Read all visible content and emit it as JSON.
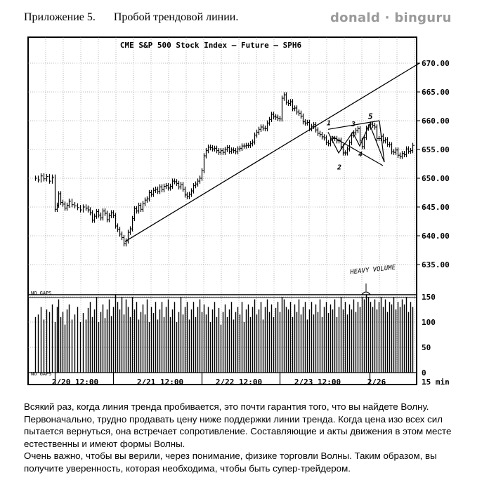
{
  "header": {
    "appendix": "Приложение 5.",
    "title": "Пробой трендовой линии.",
    "brand": "donald · binguru"
  },
  "chart_data": {
    "type": "bar",
    "title": "CME S&P 500 Stock Index – Future — SPH6",
    "price_axis": {
      "ticks": [
        "670.00",
        "665.00",
        "660.00",
        "655.00",
        "650.00",
        "645.00",
        "640.00",
        "635.00"
      ],
      "ylim": [
        632,
        672
      ]
    },
    "volume_axis": {
      "ticks": [
        "150",
        "100",
        "50",
        "0"
      ],
      "ylim": [
        0,
        160
      ]
    },
    "x_labels": [
      "2/20 12:00",
      "2/21 12:00",
      "2/22 12:00",
      "2/23 12:00",
      "2/26"
    ],
    "interval_label": "15 min",
    "no_gaps_label": "NO GAPS",
    "annotation": "HEAVY VOLUME",
    "wave_labels": [
      "1",
      "2",
      "3",
      "4",
      "5"
    ],
    "price_series": [
      [
        0,
        650.0
      ],
      [
        4,
        649.7
      ],
      [
        8,
        650.4
      ],
      [
        12,
        649.9
      ],
      [
        16,
        650.3
      ],
      [
        20,
        649.5
      ],
      [
        24,
        650.2
      ],
      [
        28,
        644.6
      ],
      [
        31,
        645.3
      ],
      [
        33,
        647.3
      ],
      [
        36,
        645.8
      ],
      [
        39,
        645.5
      ],
      [
        42,
        644.8
      ],
      [
        45,
        645.3
      ],
      [
        48,
        646.0
      ],
      [
        52,
        645.4
      ],
      [
        56,
        645.2
      ],
      [
        60,
        644.9
      ],
      [
        64,
        644.5
      ],
      [
        68,
        645.0
      ],
      [
        72,
        644.8
      ],
      [
        75,
        644.5
      ],
      [
        78,
        644.0
      ],
      [
        81,
        642.7
      ],
      [
        84,
        643.4
      ],
      [
        87,
        644.2
      ],
      [
        90,
        643.6
      ],
      [
        93,
        643.1
      ],
      [
        96,
        644.3
      ],
      [
        99,
        643.9
      ],
      [
        102,
        642.8
      ],
      [
        105,
        643.5
      ],
      [
        108,
        644.0
      ],
      [
        111,
        643.5
      ],
      [
        114,
        641.7
      ],
      [
        117,
        641.1
      ],
      [
        120,
        640.3
      ],
      [
        123,
        639.7
      ],
      [
        126,
        638.6
      ],
      [
        129,
        639.1
      ],
      [
        132,
        640.6
      ],
      [
        135,
        641.2
      ],
      [
        138,
        643.0
      ],
      [
        141,
        644.7
      ],
      [
        144,
        644.3
      ],
      [
        147,
        645.3
      ],
      [
        150,
        644.6
      ],
      [
        153,
        645.6
      ],
      [
        156,
        646.2
      ],
      [
        159,
        646.4
      ],
      [
        162,
        647.5
      ],
      [
        165,
        647.2
      ],
      [
        168,
        647.9
      ],
      [
        171,
        648.1
      ],
      [
        174,
        647.7
      ],
      [
        177,
        648.5
      ],
      [
        180,
        648.0
      ],
      [
        183,
        648.6
      ],
      [
        186,
        648.7
      ],
      [
        189,
        648.3
      ],
      [
        192,
        648.6
      ],
      [
        195,
        649.5
      ],
      [
        198,
        649.4
      ],
      [
        201,
        649.1
      ],
      [
        204,
        648.5
      ],
      [
        207,
        648.9
      ],
      [
        210,
        648.1
      ],
      [
        213,
        647.1
      ],
      [
        216,
        646.8
      ],
      [
        219,
        647.2
      ],
      [
        222,
        647.8
      ],
      [
        225,
        648.7
      ],
      [
        228,
        649.0
      ],
      [
        231,
        649.5
      ],
      [
        234,
        650.0
      ],
      [
        237,
        651.3
      ],
      [
        240,
        653.9
      ],
      [
        243,
        654.8
      ],
      [
        246,
        655.4
      ],
      [
        249,
        655.3
      ],
      [
        252,
        655.1
      ],
      [
        255,
        655.2
      ],
      [
        258,
        654.8
      ],
      [
        261,
        654.5
      ],
      [
        264,
        654.8
      ],
      [
        267,
        654.5
      ],
      [
        270,
        655.0
      ],
      [
        273,
        655.3
      ],
      [
        276,
        654.7
      ],
      [
        279,
        654.9
      ],
      [
        282,
        654.8
      ],
      [
        285,
        654.6
      ],
      [
        288,
        655.1
      ],
      [
        291,
        655.2
      ],
      [
        294,
        655.6
      ],
      [
        297,
        655.6
      ],
      [
        300,
        655.7
      ],
      [
        303,
        655.7
      ],
      [
        306,
        656.0
      ],
      [
        309,
        656.3
      ],
      [
        312,
        657.5
      ],
      [
        315,
        658.0
      ],
      [
        318,
        658.5
      ],
      [
        321,
        658.9
      ],
      [
        324,
        658.7
      ],
      [
        327,
        658.6
      ],
      [
        330,
        659.6
      ],
      [
        333,
        660.2
      ],
      [
        336,
        661.1
      ],
      [
        339,
        660.7
      ],
      [
        342,
        660.6
      ],
      [
        345,
        660.4
      ],
      [
        348,
        660.3
      ],
      [
        351,
        663.9
      ],
      [
        354,
        664.5
      ],
      [
        357,
        663.2
      ],
      [
        360,
        663.0
      ],
      [
        363,
        663.3
      ],
      [
        366,
        662.1
      ],
      [
        369,
        662.2
      ],
      [
        372,
        661.5
      ],
      [
        375,
        661.3
      ],
      [
        378,
        660.8
      ],
      [
        381,
        659.8
      ],
      [
        384,
        659.6
      ],
      [
        387,
        659.7
      ],
      [
        390,
        658.6
      ],
      [
        393,
        659.0
      ],
      [
        396,
        659.3
      ],
      [
        399,
        658.4
      ],
      [
        402,
        657.8
      ],
      [
        405,
        657.6
      ],
      [
        408,
        657.2
      ],
      [
        411,
        657.0
      ],
      [
        414,
        656.2
      ],
      [
        417,
        656.0
      ],
      [
        420,
        656.6
      ],
      [
        423,
        656.9
      ],
      [
        426,
        656.9
      ],
      [
        429,
        656.5
      ],
      [
        432,
        656.6
      ],
      [
        435,
        655.5
      ],
      [
        438,
        654.4
      ],
      [
        441,
        654.4
      ],
      [
        444,
        655.1
      ],
      [
        447,
        656.2
      ],
      [
        450,
        657.5
      ],
      [
        453,
        657.9
      ],
      [
        456,
        658.3
      ],
      [
        459,
        658.6
      ],
      [
        462,
        656.6
      ],
      [
        465,
        655.5
      ],
      [
        468,
        657.1
      ],
      [
        471,
        658.7
      ],
      [
        474,
        658.9
      ],
      [
        477,
        659.4
      ],
      [
        480,
        659.2
      ],
      [
        483,
        658.9
      ],
      [
        486,
        656.9
      ],
      [
        489,
        656.9
      ],
      [
        492,
        657.3
      ],
      [
        495,
        656.5
      ],
      [
        498,
        656.7
      ],
      [
        501,
        655.9
      ],
      [
        504,
        655.8
      ],
      [
        507,
        654.6
      ],
      [
        510,
        654.5
      ],
      [
        513,
        654.9
      ],
      [
        516,
        654.0
      ],
      [
        519,
        653.8
      ],
      [
        522,
        654.3
      ],
      [
        525,
        654.1
      ],
      [
        528,
        655.1
      ],
      [
        531,
        654.7
      ],
      [
        534,
        654.8
      ],
      [
        537,
        655.7
      ]
    ],
    "volume_series": [
      [
        0,
        110
      ],
      [
        4,
        115
      ],
      [
        8,
        130
      ],
      [
        12,
        105
      ],
      [
        16,
        125
      ],
      [
        20,
        120
      ],
      [
        24,
        135
      ],
      [
        28,
        100
      ],
      [
        31,
        130
      ],
      [
        33,
        145
      ],
      [
        36,
        110
      ],
      [
        39,
        120
      ],
      [
        42,
        95
      ],
      [
        45,
        125
      ],
      [
        48,
        135
      ],
      [
        52,
        105
      ],
      [
        56,
        115
      ],
      [
        60,
        130
      ],
      [
        64,
        100
      ],
      [
        68,
        118
      ],
      [
        72,
        105
      ],
      [
        75,
        128
      ],
      [
        78,
        140
      ],
      [
        81,
        110
      ],
      [
        84,
        125
      ],
      [
        87,
        150
      ],
      [
        90,
        100
      ],
      [
        93,
        120
      ],
      [
        96,
        135
      ],
      [
        99,
        108
      ],
      [
        102,
        125
      ],
      [
        105,
        145
      ],
      [
        108,
        112
      ],
      [
        111,
        130
      ],
      [
        114,
        155
      ],
      [
        117,
        140
      ],
      [
        120,
        125
      ],
      [
        123,
        150
      ],
      [
        126,
        115
      ],
      [
        129,
        145
      ],
      [
        132,
        130
      ],
      [
        135,
        110
      ],
      [
        138,
        150
      ],
      [
        141,
        125
      ],
      [
        144,
        140
      ],
      [
        147,
        105
      ],
      [
        150,
        120
      ],
      [
        153,
        135
      ],
      [
        156,
        115
      ],
      [
        159,
        145
      ],
      [
        162,
        100
      ],
      [
        165,
        130
      ],
      [
        168,
        118
      ],
      [
        171,
        140
      ],
      [
        174,
        105
      ],
      [
        177,
        125
      ],
      [
        180,
        140
      ],
      [
        183,
        110
      ],
      [
        186,
        130
      ],
      [
        189,
        145
      ],
      [
        192,
        110
      ],
      [
        195,
        125
      ],
      [
        198,
        140
      ],
      [
        201,
        100
      ],
      [
        204,
        120
      ],
      [
        207,
        150
      ],
      [
        210,
        115
      ],
      [
        213,
        130
      ],
      [
        216,
        140
      ],
      [
        219,
        105
      ],
      [
        222,
        125
      ],
      [
        225,
        140
      ],
      [
        228,
        110
      ],
      [
        231,
        130
      ],
      [
        234,
        145
      ],
      [
        237,
        120
      ],
      [
        240,
        135
      ],
      [
        243,
        115
      ],
      [
        246,
        130
      ],
      [
        249,
        100
      ],
      [
        252,
        125
      ],
      [
        255,
        140
      ],
      [
        258,
        110
      ],
      [
        261,
        128
      ],
      [
        264,
        95
      ],
      [
        267,
        120
      ],
      [
        270,
        135
      ],
      [
        273,
        110
      ],
      [
        276,
        125
      ],
      [
        279,
        140
      ],
      [
        282,
        105
      ],
      [
        285,
        120
      ],
      [
        288,
        130
      ],
      [
        291,
        115
      ],
      [
        294,
        140
      ],
      [
        297,
        100
      ],
      [
        300,
        125
      ],
      [
        303,
        135
      ],
      [
        306,
        110
      ],
      [
        309,
        130
      ],
      [
        312,
        145
      ],
      [
        315,
        115
      ],
      [
        318,
        125
      ],
      [
        321,
        140
      ],
      [
        324,
        105
      ],
      [
        327,
        130
      ],
      [
        330,
        145
      ],
      [
        333,
        120
      ],
      [
        336,
        135
      ],
      [
        339,
        110
      ],
      [
        342,
        128
      ],
      [
        345,
        140
      ],
      [
        348,
        120
      ],
      [
        351,
        150
      ],
      [
        354,
        145
      ],
      [
        357,
        130
      ],
      [
        360,
        125
      ],
      [
        363,
        140
      ],
      [
        366,
        110
      ],
      [
        369,
        135
      ],
      [
        372,
        120
      ],
      [
        375,
        145
      ],
      [
        378,
        115
      ],
      [
        381,
        130
      ],
      [
        384,
        140
      ],
      [
        387,
        105
      ],
      [
        390,
        125
      ],
      [
        393,
        140
      ],
      [
        396,
        115
      ],
      [
        399,
        135
      ],
      [
        402,
        120
      ],
      [
        405,
        145
      ],
      [
        408,
        110
      ],
      [
        411,
        130
      ],
      [
        414,
        140
      ],
      [
        417,
        118
      ],
      [
        420,
        135
      ],
      [
        423,
        125
      ],
      [
        426,
        145
      ],
      [
        429,
        110
      ],
      [
        432,
        130
      ],
      [
        435,
        150
      ],
      [
        438,
        125
      ],
      [
        441,
        140
      ],
      [
        444,
        115
      ],
      [
        447,
        135
      ],
      [
        450,
        125
      ],
      [
        453,
        145
      ],
      [
        456,
        120
      ],
      [
        459,
        140
      ],
      [
        462,
        130
      ],
      [
        465,
        150
      ],
      [
        468,
        145
      ],
      [
        471,
        155
      ],
      [
        474,
        150
      ],
      [
        477,
        140
      ],
      [
        480,
        130
      ],
      [
        483,
        145
      ],
      [
        486,
        125
      ],
      [
        489,
        140
      ],
      [
        492,
        150
      ],
      [
        495,
        130
      ],
      [
        498,
        145
      ],
      [
        501,
        120
      ],
      [
        504,
        140
      ],
      [
        507,
        135
      ],
      [
        510,
        150
      ],
      [
        513,
        125
      ],
      [
        516,
        140
      ],
      [
        519,
        130
      ],
      [
        522,
        145
      ],
      [
        525,
        135
      ],
      [
        528,
        150
      ],
      [
        531,
        120
      ],
      [
        534,
        140
      ],
      [
        537,
        130
      ]
    ],
    "trendline": [
      [
        128,
        639.0
      ],
      [
        547,
        670.0
      ]
    ],
    "wave_triangle_upper": [
      [
        417,
        658.5
      ],
      [
        490,
        660.0
      ]
    ],
    "wave_triangle_lower": [
      [
        422,
        657.3
      ],
      [
        495,
        652.2
      ]
    ],
    "wave_zigzag": [
      [
        417,
        658.0
      ],
      [
        432,
        654.4
      ],
      [
        452,
        658.0
      ],
      [
        462,
        655.6
      ],
      [
        476,
        659.4
      ],
      [
        497,
        652.8
      ],
      [
        490,
        660.0
      ]
    ]
  },
  "paragraphs": [
    "Всякий раз, когда линия тренда пробивается, это почти гарантия того, что вы найдете Волну. Первоначально, трудно продавать цену ниже поддержки линии тренда. Когда цена изо всех сил пытается вернуться, она встречает сопротивление. Составляющие и акты движения в этом месте естественны и имеют формы Волны.",
    "Очень важно, чтобы вы верили, через понимание, физике торговли Волны. Таким образом, вы получите уверенность, которая необходима, чтобы быть супер-трейдером."
  ]
}
